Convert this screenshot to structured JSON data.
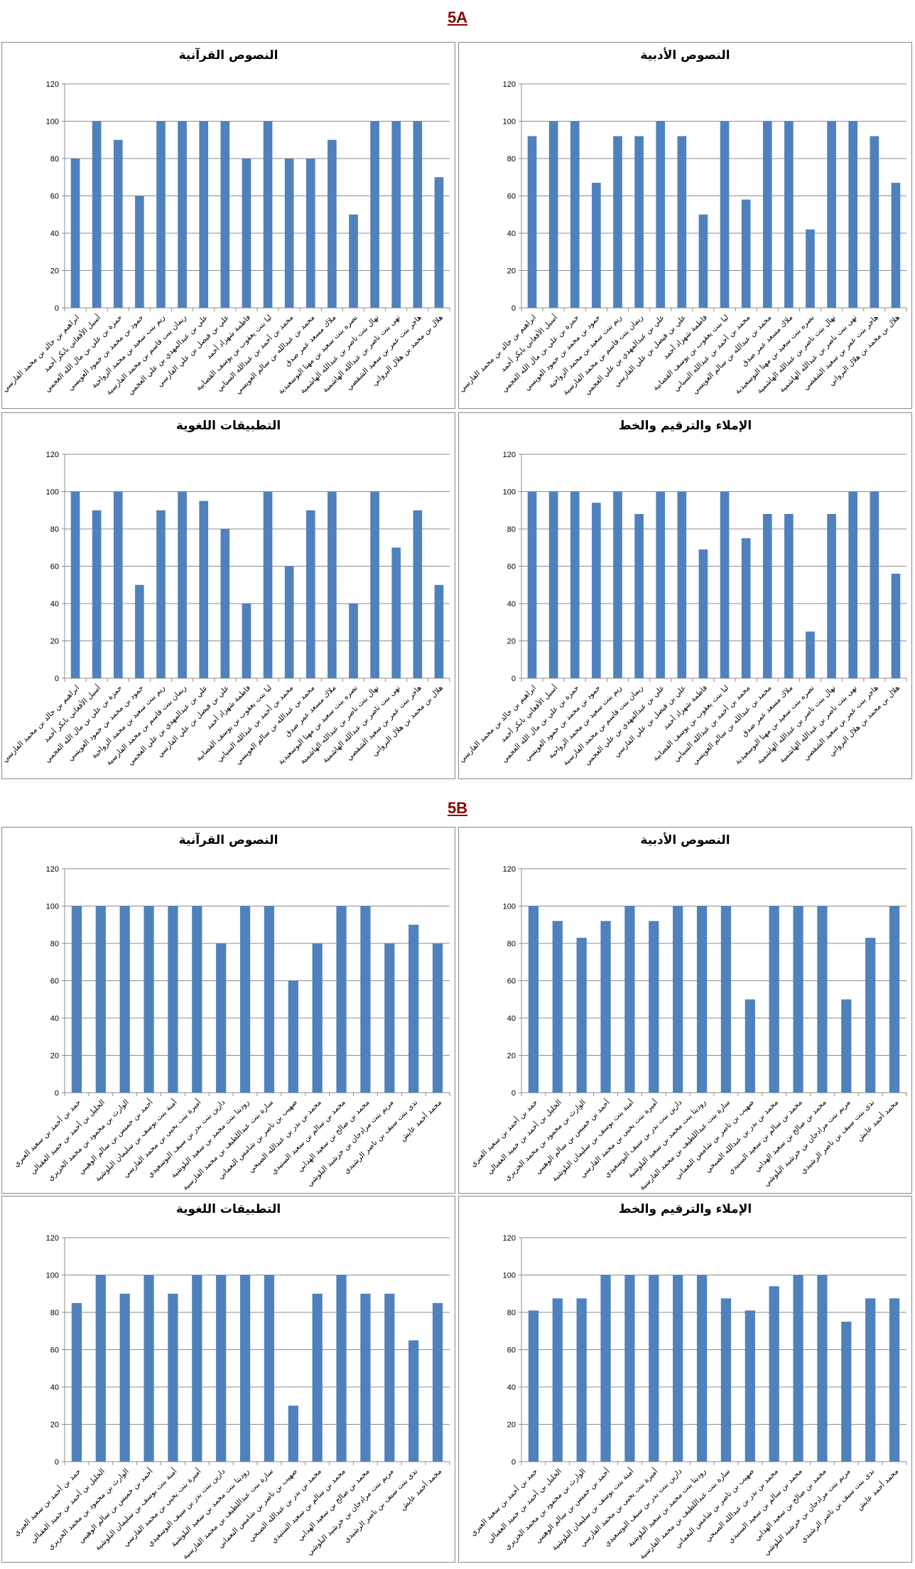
{
  "bar_color": "#4f81bd",
  "sections": [
    {
      "label": "5A",
      "students": [
        "ابراهيم بن خالد بن محمد الفارسي",
        "أسيل الأفغاني بابكر أحمد",
        "حمزة بن علي بن مال الله العجمي",
        "حمود بن محمد بن حمود العويسي",
        "ريم بنت سعيد بن محمد الرواحية",
        "ريمان بنت قاسم بن محمد الفارسية",
        "علي بن عبدالمهدي بن علي العجمي",
        "علي بن فيصل بن علي الفارسي",
        "فاطمة شهزاد أحمد",
        "لبا بنت يعقوب بن يوسف القصابية",
        "محمد بن أحمد بن عبدالله السيابي",
        "محمد بن عبدالله بن سالم العويسي",
        "ملاك مسعد عمر صدق",
        "نصره بنت سعيد بن مهنا البوسعيدية",
        "نهال بنت ناصر بن عبدالله الهاشمية",
        "نهى بنت ناصر بن عبدالله الهاشمية",
        "هاجر بنت عمر بن سعيد الشقصي",
        "هلال بن محمد بن هلال البرواني"
      ]
    },
    {
      "label": "5B",
      "students": [
        "حمد بن أحمد بن سعيد العبري",
        "الخليل بن أحمد بن حميد العقبالي",
        "الوارث بن محمود بن محمد الخزيري",
        "أحمد بن خميس بن سالم الوهيبي",
        "أمنة بنت يوسف بن سليمان البلوشية",
        "أميرة بنت يحيى بن محمد الفارسي",
        "دارين بنت بدر بن سيف البوسعيدي",
        "روديتا بنت محمد بن سعيد البلوشية",
        "سارة بنت عبداللطيف بن محمد الفارسية",
        "صهيب بن ناصر بن شامس النعماني",
        "محمد بن بدر بن عبدالله الصبحي",
        "محمد بن سالم بن سعيد السنيدي",
        "محمد بن صالح بن سعيد الهدابي",
        "مريم بنت مرادجان بن خرشيد البلوشي",
        "ندى بنت سيف بن ناصر الرشيدي",
        "محمد أحمد عايش"
      ]
    }
  ],
  "chart_data": [
    {
      "type": "bar",
      "section": "5A",
      "title": "النصوص القرآنية",
      "ylim": [
        0,
        120
      ],
      "yticks": [
        0,
        20,
        40,
        60,
        80,
        100,
        120
      ],
      "grid": true,
      "values": [
        80,
        100,
        90,
        60,
        100,
        100,
        100,
        100,
        80,
        100,
        80,
        80,
        90,
        50,
        100,
        100,
        100,
        70
      ]
    },
    {
      "type": "bar",
      "section": "5A",
      "title": "النصوص الأدبية",
      "ylim": [
        0,
        120
      ],
      "yticks": [
        0,
        20,
        40,
        60,
        80,
        100,
        120
      ],
      "grid": true,
      "values": [
        92,
        100,
        100,
        67,
        92,
        92,
        100,
        92,
        50,
        100,
        58,
        100,
        100,
        42,
        100,
        100,
        92,
        67
      ]
    },
    {
      "type": "bar",
      "section": "5A",
      "title": "التطبيقات اللغوية",
      "ylim": [
        0,
        120
      ],
      "yticks": [
        0,
        20,
        40,
        60,
        80,
        100,
        120
      ],
      "grid": true,
      "values": [
        100,
        90,
        100,
        50,
        90,
        100,
        95,
        80,
        40,
        100,
        60,
        90,
        100,
        40,
        100,
        70,
        90,
        50
      ]
    },
    {
      "type": "bar",
      "section": "5A",
      "title": "الإملاء والترقيم والخط",
      "ylim": [
        0,
        120
      ],
      "yticks": [
        0,
        20,
        40,
        60,
        80,
        100,
        120
      ],
      "grid": true,
      "values": [
        100,
        100,
        100,
        94,
        100,
        88,
        100,
        100,
        69,
        100,
        75,
        88,
        88,
        25,
        88,
        100,
        100,
        56
      ]
    },
    {
      "type": "bar",
      "section": "5B",
      "title": "النصوص القرآنية",
      "ylim": [
        0,
        120
      ],
      "yticks": [
        0,
        20,
        40,
        60,
        80,
        100,
        120
      ],
      "grid": true,
      "values": [
        100,
        100,
        100,
        100,
        100,
        100,
        80,
        100,
        100,
        60,
        80,
        100,
        100,
        80,
        90,
        80
      ]
    },
    {
      "type": "bar",
      "section": "5B",
      "title": "النصوص الأدبية",
      "ylim": [
        0,
        120
      ],
      "yticks": [
        0,
        20,
        40,
        60,
        80,
        100,
        120
      ],
      "grid": true,
      "values": [
        100,
        92,
        83,
        92,
        100,
        92,
        100,
        100,
        100,
        50,
        100,
        100,
        100,
        50,
        83,
        100
      ]
    },
    {
      "type": "bar",
      "section": "5B",
      "title": "التطبيقات اللغوية",
      "ylim": [
        0,
        120
      ],
      "yticks": [
        0,
        20,
        40,
        60,
        80,
        100,
        120
      ],
      "grid": true,
      "values": [
        85,
        100,
        90,
        100,
        90,
        100,
        100,
        100,
        100,
        30,
        90,
        100,
        90,
        90,
        65,
        85
      ]
    },
    {
      "type": "bar",
      "section": "5B",
      "title": "الإملاء والترقيم والخط",
      "ylim": [
        0,
        120
      ],
      "yticks": [
        0,
        20,
        40,
        60,
        80,
        100,
        120
      ],
      "grid": true,
      "values": [
        81,
        87.5,
        87.5,
        100,
        100,
        100,
        100,
        100,
        87.5,
        81,
        94,
        100,
        100,
        75,
        87.5,
        87.5
      ]
    }
  ]
}
